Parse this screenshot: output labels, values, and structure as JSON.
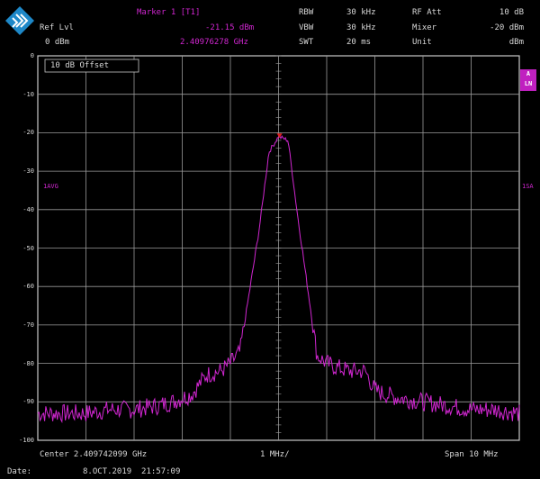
{
  "header": {
    "marker_label": "Marker 1 [T1]",
    "marker_level": "-21.15 dBm",
    "marker_freq": "2.40976278 GHz",
    "ref_lvl_label": "Ref Lvl",
    "ref_lvl_value": "0 dBm",
    "rbw_label": "RBW",
    "rbw_value": "30 kHz",
    "vbw_label": "VBW",
    "vbw_value": "30 kHz",
    "swt_label": "SWT",
    "swt_value": "20 ms",
    "rfatt_label": "RF Att",
    "rfatt_value": "10 dB",
    "mixer_label": "Mixer",
    "mixer_value": "-20 dBm",
    "unit_label": "Unit",
    "unit_value": "dBm"
  },
  "display": {
    "scale_offset_label": "10 dB Offset",
    "left_level_label": "1AVG",
    "right_level_label": "1SA",
    "right_box_top": "A",
    "right_box_bottom": "LN",
    "trace_color": "#d026d0",
    "grid_color": "#9a9a9a"
  },
  "footer": {
    "center_label": "Center 2.409742099 GHz",
    "div_label": "1 MHz/",
    "span_label": "Span 10 MHz",
    "date_label": "Date:",
    "date_value": "8.OCT.2019  21:57:09"
  },
  "chart_data": {
    "type": "line",
    "title": "",
    "xlabel": "",
    "ylabel": "",
    "x_center_ghz": 2.409742099,
    "x_span_mhz": 10,
    "x_div_mhz": 1,
    "ylim": [
      -100,
      0
    ],
    "y_ticks": [
      0,
      -10,
      -20,
      -30,
      -40,
      -50,
      -60,
      -70,
      -80,
      -90,
      -100
    ],
    "grid": true,
    "marker": {
      "x_ghz": 2.40976278,
      "y_dbm": -21.15
    },
    "series": [
      {
        "x_offset_mhz": [
          -5.0,
          -4.5,
          -4.0,
          -3.5,
          -3.0,
          -2.5,
          -2.2,
          -2.0,
          -1.8,
          -1.5,
          -1.2,
          -1.0,
          -0.8,
          -0.4,
          -0.2,
          0.0,
          0.2,
          0.4,
          0.8,
          1.0,
          1.2,
          1.5,
          1.8,
          2.0,
          2.2,
          2.5,
          3.0,
          3.5,
          4.0,
          4.5,
          5.0
        ],
        "values": [
          -93,
          -93,
          -93,
          -92,
          -92,
          -91,
          -90,
          -89,
          -88,
          -83,
          -82,
          -80,
          -77,
          -45,
          -25,
          -21,
          -22,
          -42,
          -78,
          -80,
          -81,
          -82,
          -82,
          -87,
          -88,
          -89,
          -90,
          -91,
          -92,
          -92,
          -93
        ]
      }
    ]
  }
}
